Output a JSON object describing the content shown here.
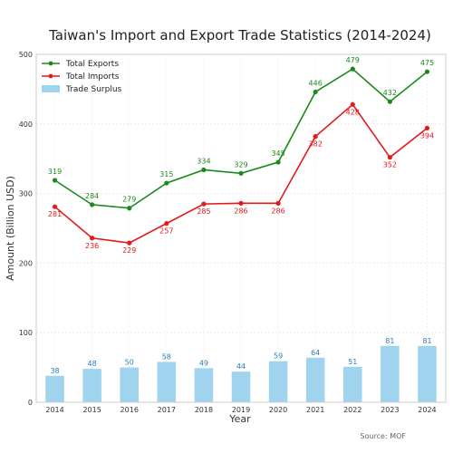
{
  "chart_data": {
    "type": "line",
    "title": "Taiwan's Import and Export Trade Statistics (2014-2024)",
    "xlabel": "Year",
    "ylabel": "Amount (Billion USD)",
    "source": "Source: MOF",
    "categories": [
      "2014",
      "2015",
      "2016",
      "2017",
      "2018",
      "2019",
      "2020",
      "2021",
      "2022",
      "2023",
      "2024"
    ],
    "ylim": [
      0,
      500
    ],
    "yticks": [
      0,
      100,
      200,
      300,
      400,
      500
    ],
    "grid": true,
    "legend_position": "top-left",
    "series": [
      {
        "name": "Total Exports",
        "type": "line",
        "color": "#1a8a1a",
        "values": [
          319,
          284,
          279,
          315,
          334,
          329,
          345,
          446,
          479,
          432,
          475
        ]
      },
      {
        "name": "Total Imports",
        "type": "line",
        "color": "#e31a1c",
        "values": [
          281,
          236,
          229,
          257,
          285,
          286,
          286,
          382,
          428,
          352,
          394
        ]
      },
      {
        "name": "Trade Surplus",
        "type": "bar",
        "color": "#9fd3ee",
        "values": [
          38,
          48,
          50,
          58,
          49,
          44,
          59,
          64,
          51,
          81,
          81
        ]
      }
    ]
  }
}
